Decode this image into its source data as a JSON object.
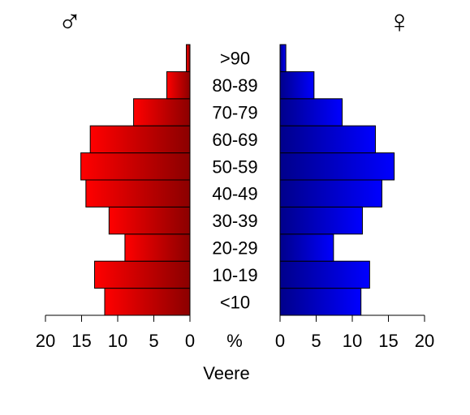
{
  "chart_data": {
    "type": "bar",
    "subtype": "population-pyramid",
    "title": "Veere",
    "unit_label": "%",
    "male_symbol": "♂",
    "female_symbol": "♀",
    "categories": [
      "<10",
      "10-19",
      "20-29",
      "30-39",
      "40-49",
      "50-59",
      "60-69",
      "70-79",
      "80-89",
      ">90"
    ],
    "series": [
      {
        "values": [
          11.8,
          13.2,
          9.0,
          11.2,
          14.4,
          15.1,
          13.8,
          7.8,
          3.2,
          0.5
        ]
      },
      {
        "values": [
          11.2,
          12.4,
          7.4,
          11.4,
          14.1,
          15.8,
          13.2,
          8.6,
          4.7,
          0.8
        ]
      }
    ],
    "xlim": [
      0,
      20
    ],
    "xticks_left": [
      "20",
      "15",
      "10",
      "5",
      "0"
    ],
    "xticks_right": [
      "0",
      "5",
      "10",
      "15",
      "20"
    ],
    "colors": {
      "male_dark": "#8b0000",
      "male_light": "#ff0000",
      "female_dark": "#00008b",
      "female_light": "#0000ff"
    }
  }
}
